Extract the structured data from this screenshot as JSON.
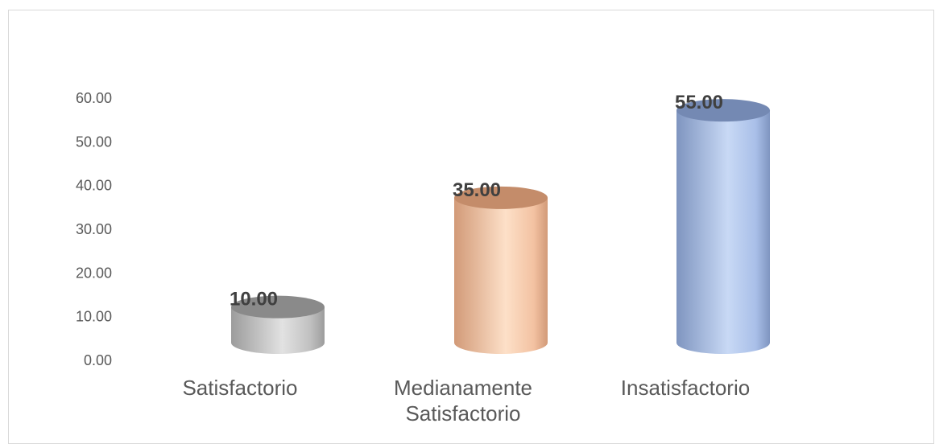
{
  "chart_data": {
    "type": "bar",
    "style": "3d-cylinder",
    "categories": [
      "Satisfactorio",
      "Medianamente Satisfactorio",
      "Insatisfactorio"
    ],
    "category_lines": [
      [
        "Satisfactorio"
      ],
      [
        "Medianamente",
        "Satisfactorio"
      ],
      [
        "Insatisfactorio"
      ]
    ],
    "values": [
      10.0,
      35.0,
      55.0
    ],
    "data_labels": [
      "10.00",
      "35.00",
      "55.00"
    ],
    "yticks": [
      "0.00",
      "10.00",
      "20.00",
      "30.00",
      "40.00",
      "50.00",
      "60.00"
    ],
    "ylim": [
      0,
      60
    ],
    "grid": false,
    "legend": "none",
    "colors": [
      {
        "dark": "#9c9c9c",
        "light": "#e2e2e2",
        "mid": "#c0c0c0",
        "top": "#8a8a8a"
      },
      {
        "dark": "#d29a78",
        "light": "#fde0c8",
        "mid": "#f3c2a2",
        "top": "#c48c6a"
      },
      {
        "dark": "#7f95c0",
        "light": "#c8d9f5",
        "mid": "#a9bfe8",
        "top": "#7489b3"
      }
    ],
    "title": "",
    "xlabel": "",
    "ylabel": ""
  }
}
